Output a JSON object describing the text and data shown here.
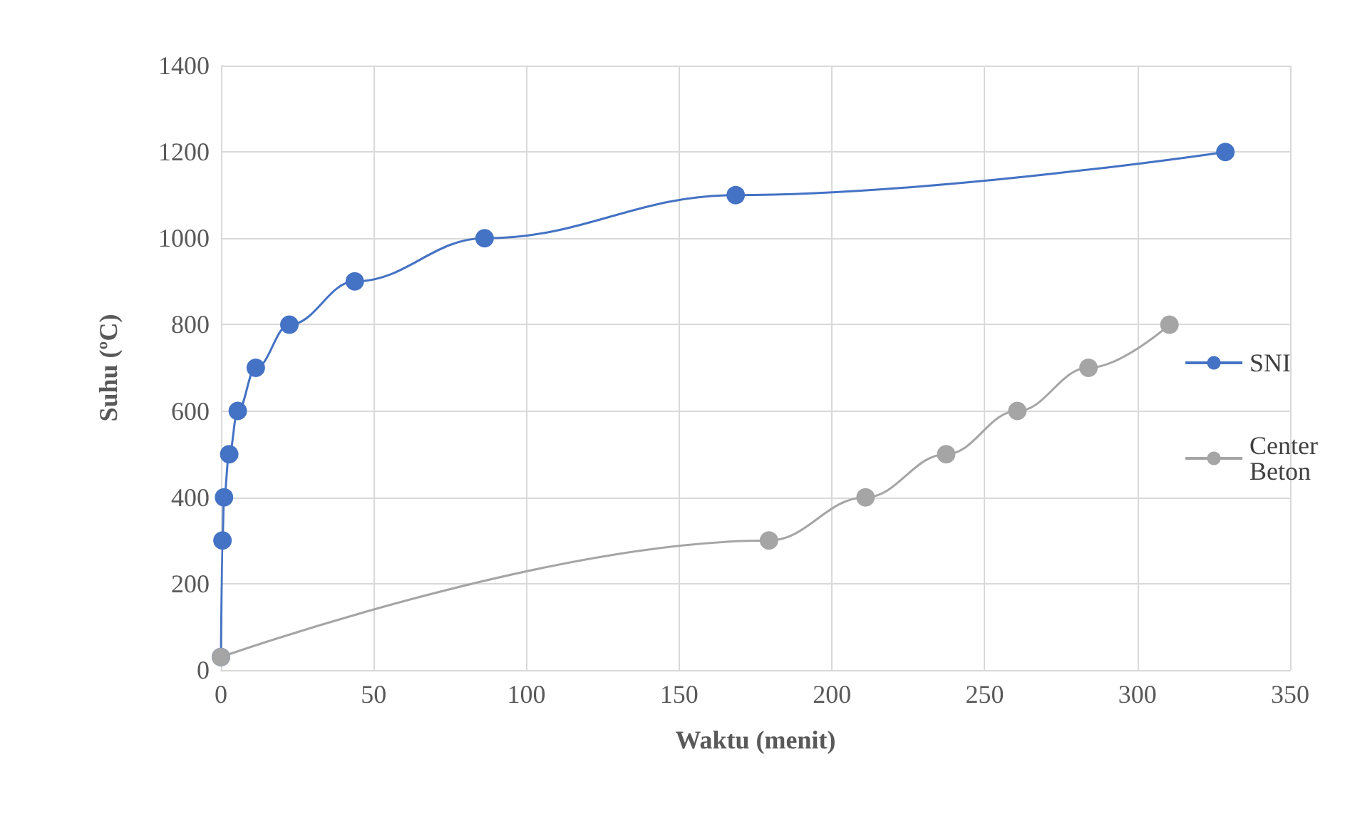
{
  "chart_data": {
    "type": "line",
    "xlabel": "Waktu (menit)",
    "ylabel": "Suhu (ºC)",
    "xlim": [
      0,
      350
    ],
    "xticks": [
      0,
      50,
      100,
      150,
      200,
      250,
      300,
      350
    ],
    "ylim": [
      0,
      1400
    ],
    "yticks": [
      0,
      200,
      400,
      600,
      800,
      1000,
      1200,
      1400
    ],
    "grid": true,
    "legend": "right",
    "marker": "circle",
    "line_style": "solid",
    "series": [
      {
        "name": "SNI",
        "color": "#4472c4",
        "x": [
          0,
          0.5,
          1,
          2.7,
          5.5,
          11.4,
          22.4,
          43.8,
          86.3,
          168.5,
          328.8
        ],
        "values": [
          30,
          300,
          400,
          500,
          600,
          700,
          800,
          900,
          1000,
          1100,
          1200
        ]
      },
      {
        "name": "Center Beton",
        "color": "#a5a5a5",
        "x": [
          0,
          179.4,
          211,
          237.4,
          260.7,
          284,
          310.5
        ],
        "values": [
          30,
          300,
          400,
          500,
          600,
          700,
          800
        ]
      }
    ]
  }
}
